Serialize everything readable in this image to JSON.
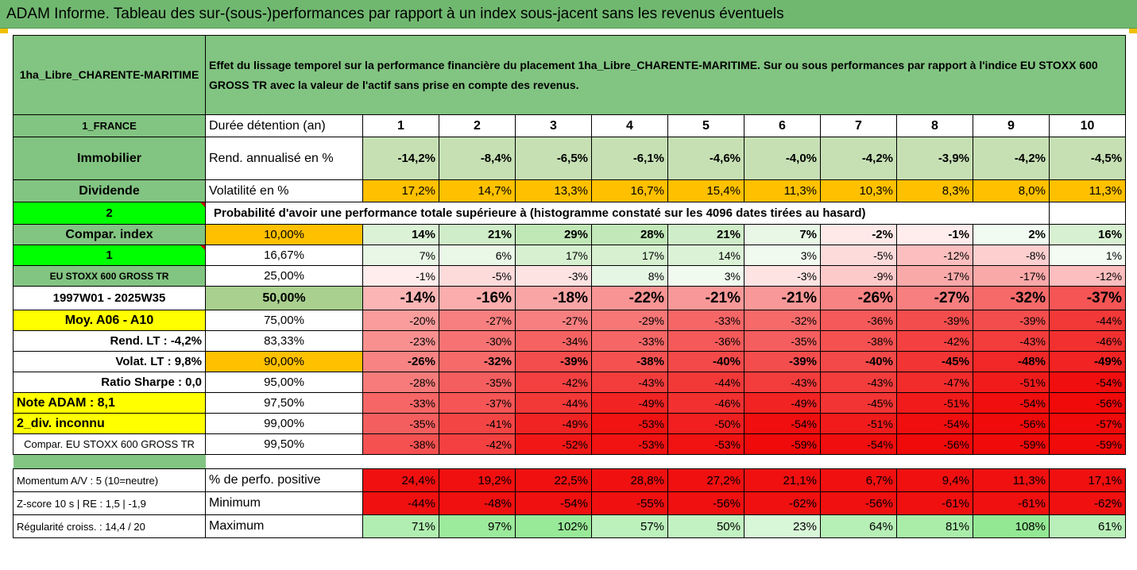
{
  "title": "ADAM Informe. Tableau des sur-(sous-)performances par rapport à un index sous-jacent sans les revenus éventuels",
  "header": {
    "name": "1ha_Libre_CHARENTE-MARITIME",
    "description": "Effet du lissage temporel sur la performance financière du placement 1ha_Libre_CHARENTE-MARITIME. Sur ou sous performances par rapport à l'indice EU STOXX 600 GROSS TR avec la valeur de l'actif sans prise en compte des revenus."
  },
  "left_labels": {
    "country": "1_FRANCE",
    "category": "Immobilier",
    "dividend": "Dividende",
    "num2": "2",
    "compar_index": "Compar. index",
    "num1": "1",
    "index_name": "EU STOXX 600 GROSS TR",
    "period": "1997W01 - 2025W35",
    "moy": "Moy. A06 - A10",
    "rend_lt": "Rend. LT :    -4,2%",
    "volat_lt": "Volat. LT :    9,8%",
    "sharpe": "Ratio Sharpe :    0,0",
    "note": "Note ADAM : 8,1",
    "div": "2_div. inconnu",
    "compar_full": "Compar. EU STOXX 600 GROSS TR",
    "momentum": "Momentum A/V : 5 (10=neutre)",
    "zscore": "Z-score 10 s  | RE : 1,5  | -1,9",
    "regularity": "Régularité croiss. : 14,4 / 20"
  },
  "row_labels": {
    "duration": "Durée détention (an)",
    "rend": "Rend. annualisé en %",
    "vol": "Volatilité en %",
    "probability": "Probabilité d'avoir une performance totale supérieure à (histogramme constaté sur les 4096 dates tirées au hasard)",
    "positive": "% de perfo. positive",
    "minimum": "Minimum",
    "maximum": "Maximum"
  },
  "years": [
    "1",
    "2",
    "3",
    "4",
    "5",
    "6",
    "7",
    "8",
    "9",
    "10"
  ],
  "rend": [
    "-14,2%",
    "-8,4%",
    "-6,5%",
    "-6,1%",
    "-4,6%",
    "-4,0%",
    "-4,2%",
    "-3,9%",
    "-4,2%",
    "-4,5%"
  ],
  "vol": [
    "17,2%",
    "14,7%",
    "13,3%",
    "16,7%",
    "15,4%",
    "11,3%",
    "10,3%",
    "8,3%",
    "8,0%",
    "11,3%"
  ],
  "prob_rows": [
    {
      "p": "10,00%",
      "v": [
        "14%",
        "21%",
        "29%",
        "28%",
        "21%",
        "7%",
        "-2%",
        "-1%",
        "2%",
        "16%"
      ]
    },
    {
      "p": "16,67%",
      "v": [
        "7%",
        "6%",
        "17%",
        "17%",
        "14%",
        "3%",
        "-5%",
        "-12%",
        "-8%",
        "1%"
      ]
    },
    {
      "p": "25,00%",
      "v": [
        "-1%",
        "-5%",
        "-3%",
        "8%",
        "3%",
        "-3%",
        "-9%",
        "-17%",
        "-17%",
        "-12%"
      ]
    },
    {
      "p": "50,00%",
      "v": [
        "-14%",
        "-16%",
        "-18%",
        "-22%",
        "-21%",
        "-21%",
        "-26%",
        "-27%",
        "-32%",
        "-37%"
      ]
    },
    {
      "p": "75,00%",
      "v": [
        "-20%",
        "-27%",
        "-27%",
        "-29%",
        "-33%",
        "-32%",
        "-36%",
        "-39%",
        "-39%",
        "-44%"
      ]
    },
    {
      "p": "83,33%",
      "v": [
        "-23%",
        "-30%",
        "-34%",
        "-33%",
        "-36%",
        "-35%",
        "-38%",
        "-42%",
        "-43%",
        "-46%"
      ]
    },
    {
      "p": "90,00%",
      "v": [
        "-26%",
        "-32%",
        "-39%",
        "-38%",
        "-40%",
        "-39%",
        "-40%",
        "-45%",
        "-48%",
        "-49%"
      ]
    },
    {
      "p": "95,00%",
      "v": [
        "-28%",
        "-35%",
        "-42%",
        "-43%",
        "-44%",
        "-43%",
        "-43%",
        "-47%",
        "-51%",
        "-54%"
      ]
    },
    {
      "p": "97,50%",
      "v": [
        "-33%",
        "-37%",
        "-44%",
        "-49%",
        "-46%",
        "-49%",
        "-45%",
        "-51%",
        "-54%",
        "-56%"
      ]
    },
    {
      "p": "99,00%",
      "v": [
        "-35%",
        "-41%",
        "-49%",
        "-53%",
        "-50%",
        "-54%",
        "-51%",
        "-54%",
        "-56%",
        "-57%"
      ]
    },
    {
      "p": "99,50%",
      "v": [
        "-38%",
        "-42%",
        "-52%",
        "-53%",
        "-53%",
        "-59%",
        "-54%",
        "-56%",
        "-59%",
        "-59%"
      ]
    }
  ],
  "positive": [
    "24,4%",
    "19,2%",
    "22,5%",
    "28,8%",
    "27,2%",
    "21,1%",
    "6,7%",
    "9,4%",
    "11,3%",
    "17,1%"
  ],
  "minimum": [
    "-44%",
    "-48%",
    "-54%",
    "-55%",
    "-56%",
    "-62%",
    "-56%",
    "-61%",
    "-61%",
    "-62%"
  ],
  "maximum": [
    "71%",
    "97%",
    "102%",
    "57%",
    "50%",
    "23%",
    "64%",
    "81%",
    "108%",
    "61%"
  ]
}
